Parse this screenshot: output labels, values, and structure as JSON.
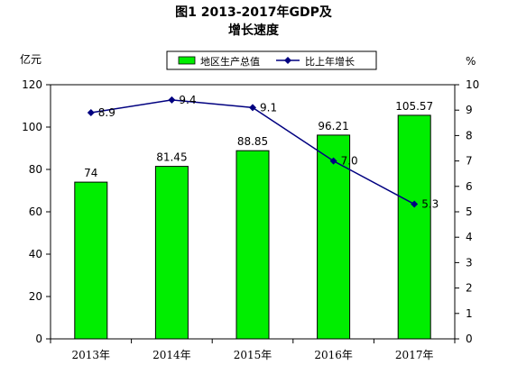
{
  "chart_data": {
    "type": "bar",
    "title": "图1  2013-2017年GDP及",
    "subtitle": "增长速度",
    "categories": [
      "2013年",
      "2014年",
      "2015年",
      "2016年",
      "2017年"
    ],
    "y_left_label": "亿元",
    "y_right_label": "%",
    "ylim_left": [
      0,
      120
    ],
    "ylim_right": [
      0,
      10
    ],
    "yticks_left": [
      "0",
      "20",
      "40",
      "60",
      "80",
      "100",
      "120"
    ],
    "yticks_right": [
      "0",
      "1",
      "2",
      "3",
      "4",
      "5",
      "6",
      "7",
      "8",
      "9",
      "10"
    ],
    "legend_position": "top",
    "series": [
      {
        "name": "地区生产总值",
        "type": "bar",
        "axis": "left",
        "color": "#00ee00",
        "values": [
          74,
          81.45,
          88.85,
          96.21,
          105.57
        ],
        "labels": [
          "74",
          "81.45",
          "88.85",
          "96.21",
          "105.57"
        ]
      },
      {
        "name": "比上年增长",
        "type": "line",
        "axis": "right",
        "color": "#000080",
        "values": [
          8.9,
          9.4,
          9.1,
          7.0,
          5.3
        ],
        "labels": [
          "8.9",
          "9.4",
          "9.1",
          "7.0",
          "5.3"
        ]
      }
    ]
  }
}
